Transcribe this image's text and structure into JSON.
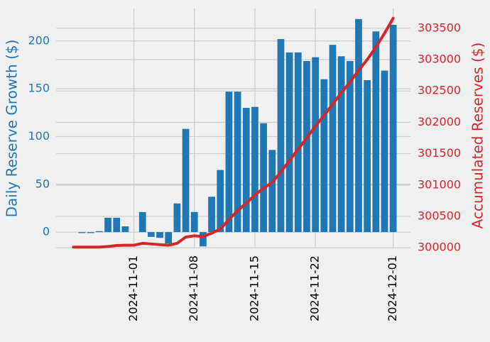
{
  "chart_data": {
    "type": "bar",
    "ylabel": "Daily Reserve Growth ($)",
    "y2label": "Accumulated Reserves ($)",
    "x": [
      "2024-10-25",
      "2024-10-26",
      "2024-10-27",
      "2024-10-28",
      "2024-10-29",
      "2024-10-30",
      "2024-10-31",
      "2024-11-01",
      "2024-11-02",
      "2024-11-03",
      "2024-11-04",
      "2024-11-05",
      "2024-11-06",
      "2024-11-07",
      "2024-11-08",
      "2024-11-09",
      "2024-11-10",
      "2024-11-11",
      "2024-11-12",
      "2024-11-13",
      "2024-11-14",
      "2024-11-15",
      "2024-11-16",
      "2024-11-17",
      "2024-11-18",
      "2024-11-19",
      "2024-11-20",
      "2024-11-21",
      "2024-11-22",
      "2024-11-23",
      "2024-11-24",
      "2024-11-25",
      "2024-11-26",
      "2024-11-27",
      "2024-11-28",
      "2024-11-29",
      "2024-11-30",
      "2024-12-01"
    ],
    "series": [
      {
        "type": "bar",
        "color": "#1f77b4",
        "values": [
          null,
          -1,
          -1,
          1,
          15,
          15,
          6,
          0,
          21,
          -5,
          -6,
          -12,
          30,
          108,
          21,
          -15,
          37,
          65,
          147,
          147,
          130,
          131,
          114,
          86,
          202,
          188,
          188,
          179,
          183,
          160,
          196,
          184,
          179,
          223,
          159,
          210,
          169,
          217
        ]
      },
      {
        "type": "line",
        "axis": "y2",
        "color": "#d62728",
        "values": [
          300010,
          300010,
          300010,
          300010,
          300020,
          300035,
          300040,
          300040,
          300070,
          300060,
          300050,
          300040,
          300070,
          300170,
          300190,
          300180,
          300230,
          300300,
          300450,
          300590,
          300710,
          300840,
          300950,
          301040,
          301210,
          301390,
          301570,
          301750,
          301940,
          302110,
          302290,
          302470,
          302640,
          302830,
          303000,
          303200,
          303420,
          303660
        ]
      }
    ],
    "xlim": [
      "2024-10-23",
      "2024-12-03"
    ],
    "xticks": [
      "2024-11-01",
      "2024-11-08",
      "2024-11-15",
      "2024-11-22",
      "2024-12-01"
    ],
    "ylim": [
      -17,
      234
    ],
    "yticks": [
      0,
      50,
      100,
      150,
      200
    ],
    "y2lim": [
      299990,
      303815
    ],
    "y2ticks": [
      300000,
      300500,
      301000,
      301500,
      302000,
      302500,
      303000,
      303500
    ],
    "grid": true,
    "ylabel_color": "#1f77b4",
    "y2label_color": "#d62728"
  }
}
